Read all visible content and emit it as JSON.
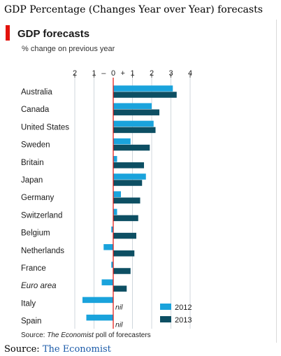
{
  "page": {
    "title": "GDP Percentage (Changes Year over Year) forecasts",
    "source_label": "Source:",
    "source_link": "The Economist"
  },
  "chart_data": {
    "type": "bar",
    "orientation": "horizontal",
    "title": "GDP forecasts",
    "subtitle": "% change on previous year",
    "xlim": [
      -2,
      4
    ],
    "x_ticks": [
      {
        "label": "2",
        "value": -2
      },
      {
        "label": "1",
        "value": -1
      },
      {
        "label": "–",
        "value": -0.5
      },
      {
        "label": "0",
        "value": 0
      },
      {
        "label": "+",
        "value": 0.5
      },
      {
        "label": "1",
        "value": 1
      },
      {
        "label": "2",
        "value": 2
      },
      {
        "label": "3",
        "value": 3
      },
      {
        "label": "4",
        "value": 4
      }
    ],
    "grid": true,
    "legend_position": "bottom-right",
    "categories": [
      "Australia",
      "Canada",
      "United States",
      "Sweden",
      "Britain",
      "Japan",
      "Germany",
      "Switzerland",
      "Belgium",
      "Netherlands",
      "France",
      "Euro area",
      "Italy",
      "Spain"
    ],
    "italic_categories": [
      "Euro area"
    ],
    "series": [
      {
        "name": "2012",
        "color": "#1aa3dc",
        "values": [
          3.1,
          2.0,
          2.1,
          0.9,
          0.2,
          1.7,
          0.4,
          0.2,
          -0.1,
          -0.5,
          -0.1,
          -0.6,
          -1.6,
          -1.4
        ]
      },
      {
        "name": "2013",
        "color": "#0d4f63",
        "values": [
          3.3,
          2.4,
          2.2,
          1.9,
          1.6,
          1.5,
          1.4,
          1.3,
          1.2,
          1.1,
          0.9,
          0.7,
          0.0,
          0.0
        ]
      }
    ],
    "annotations": [
      {
        "category": "Italy",
        "series": "2013",
        "text": "nil"
      },
      {
        "category": "Spain",
        "series": "2013",
        "text": "nil"
      }
    ],
    "zero_line_color": "#e3120b",
    "source_note_prefix": "Source: ",
    "source_note_italic": "The Economist",
    "source_note_suffix": " poll of forecasters"
  }
}
